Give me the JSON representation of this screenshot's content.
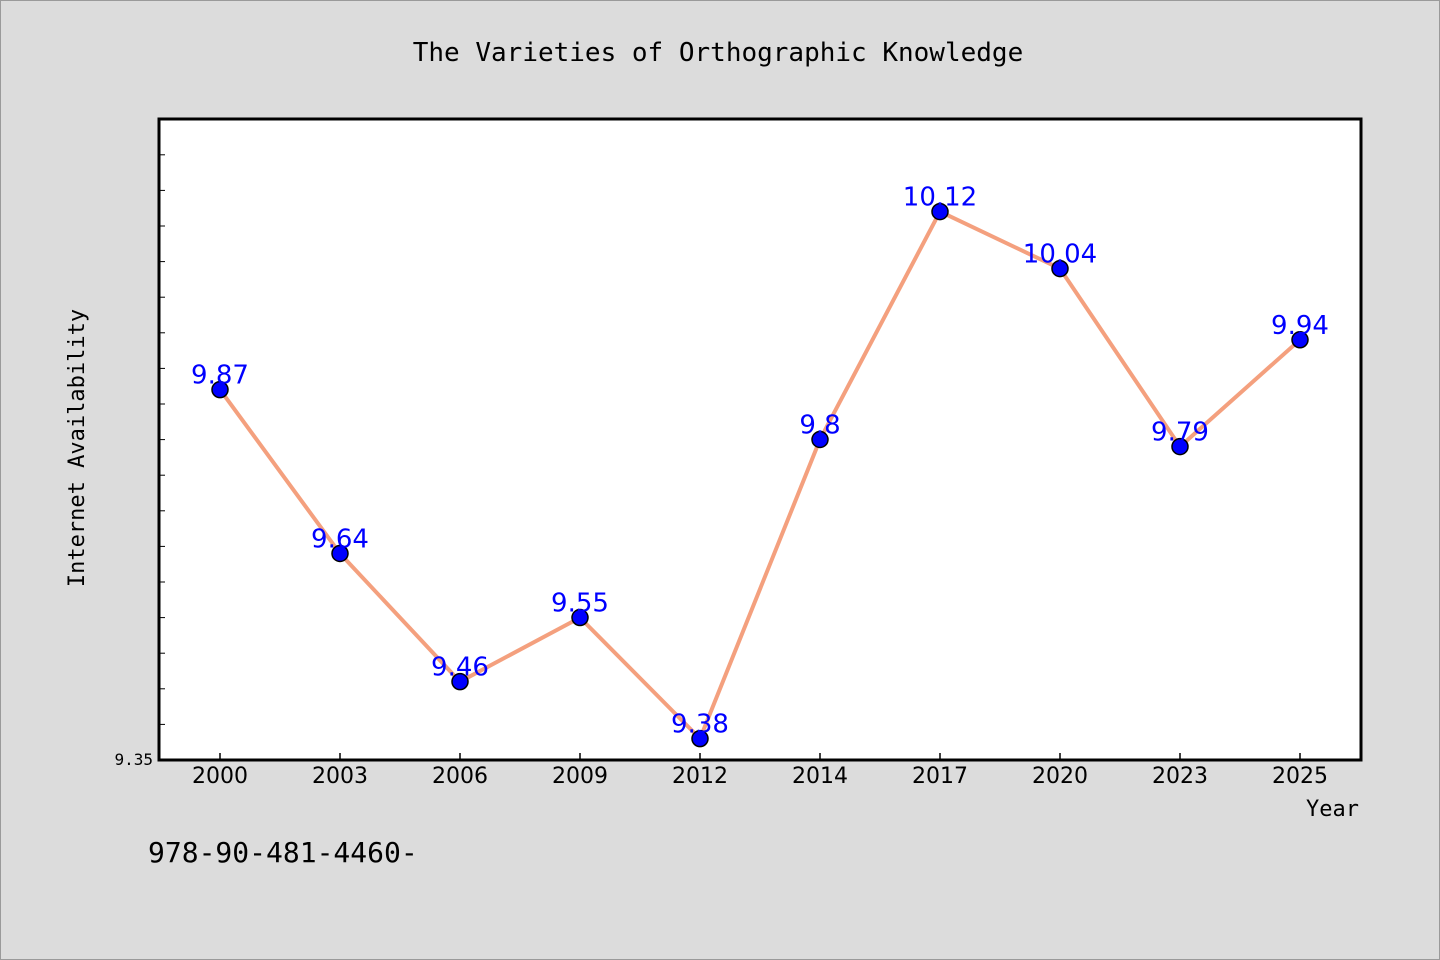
{
  "chart_data": {
    "type": "line",
    "title": "The Varieties of Orthographic Knowledge",
    "xlabel": "Year",
    "ylabel": "Internet Availability",
    "categories": [
      "2000",
      "2003",
      "2006",
      "2009",
      "2012",
      "2014",
      "2017",
      "2020",
      "2023",
      "2025"
    ],
    "values": [
      9.87,
      9.64,
      9.46,
      9.55,
      9.38,
      9.8,
      10.12,
      10.04,
      9.79,
      9.94
    ],
    "value_labels": [
      "9.87",
      "9.64",
      "9.46",
      "9.55",
      "9.38",
      "9.8",
      "10.12",
      "10.04",
      "9.79",
      "9.94"
    ],
    "ylim": [
      9.35,
      10.25
    ],
    "yticks": [
      "9.35"
    ],
    "grid": false,
    "line_color": "#f4a07e",
    "marker_color": "#0000ff",
    "label_color": "#0000ff"
  },
  "footer": {
    "text": "978-90-481-4460-"
  }
}
